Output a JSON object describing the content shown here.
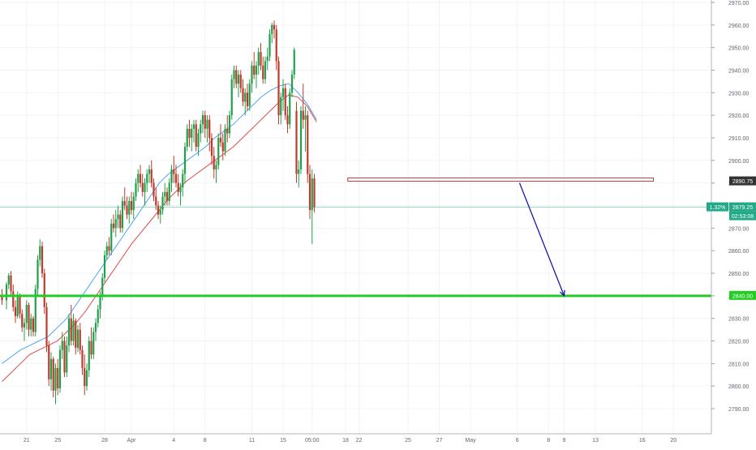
{
  "chart_data": {
    "type": "candlestick",
    "title": "",
    "xlabel": "",
    "ylabel": "",
    "ylim": [
      2785,
      2972
    ],
    "grid": true,
    "y_ticks": [
      2790,
      2800,
      2810,
      2820,
      2830,
      2840,
      2850,
      2860,
      2870,
      2880,
      2890,
      2900,
      2910,
      2920,
      2930,
      2940,
      2950,
      2960,
      2970
    ],
    "y_tick_labels": [
      "2790.00",
      "2800.00",
      "2810.00",
      "2820.00",
      "2830.00",
      "2840.00",
      "2850.00",
      "2860.00",
      "2870.00",
      "2880.00",
      "2890.00",
      "2900.00",
      "2910.00",
      "2920.00",
      "2930.00",
      "2940.00",
      "2950.00",
      "2960.00",
      "2970.00"
    ],
    "x_labels": [
      {
        "label": "21",
        "bar": 11
      },
      {
        "label": "25",
        "bar": 25
      },
      {
        "label": "28",
        "bar": 46
      },
      {
        "label": "Apr",
        "bar": 58
      },
      {
        "label": "4",
        "bar": 77
      },
      {
        "label": "8",
        "bar": 91
      },
      {
        "label": "11",
        "bar": 112
      },
      {
        "label": "15",
        "bar": 126
      },
      {
        "label": "05:00",
        "bar": 139
      },
      {
        "label": "18",
        "bar": 154
      },
      {
        "label": "22",
        "bar": 160
      },
      {
        "label": "25",
        "bar": 182
      },
      {
        "label": "27",
        "bar": 196
      },
      {
        "label": "May",
        "bar": 210
      },
      {
        "label": "6",
        "bar": 231
      },
      {
        "label": "8",
        "bar": 245
      },
      {
        "label": "9",
        "bar": 252
      },
      {
        "label": "13",
        "bar": 266
      },
      {
        "label": "16",
        "bar": 287
      },
      {
        "label": "20",
        "bar": 301
      }
    ],
    "candles": [
      [
        2840,
        2843,
        2836,
        2838
      ],
      [
        2838,
        2846,
        2834,
        2845
      ],
      [
        2845,
        2850,
        2843,
        2849
      ],
      [
        2849,
        2851,
        2840,
        2842
      ],
      [
        2842,
        2845,
        2833,
        2835
      ],
      [
        2835,
        2838,
        2828,
        2831
      ],
      [
        2831,
        2842,
        2830,
        2840
      ],
      [
        2840,
        2841,
        2830,
        2832
      ],
      [
        2832,
        2834,
        2824,
        2826
      ],
      [
        2826,
        2830,
        2820,
        2828
      ],
      [
        2828,
        2838,
        2825,
        2836
      ],
      [
        2836,
        2837,
        2822,
        2825
      ],
      [
        2825,
        2832,
        2822,
        2830
      ],
      [
        2830,
        2831,
        2822,
        2824
      ],
      [
        2824,
        2845,
        2822,
        2843
      ],
      [
        2843,
        2858,
        2840,
        2856
      ],
      [
        2856,
        2865,
        2853,
        2862
      ],
      [
        2862,
        2864,
        2848,
        2850
      ],
      [
        2850,
        2852,
        2832,
        2835
      ],
      [
        2835,
        2837,
        2815,
        2818
      ],
      [
        2818,
        2820,
        2800,
        2803
      ],
      [
        2803,
        2815,
        2798,
        2812
      ],
      [
        2812,
        2813,
        2795,
        2798
      ],
      [
        2798,
        2810,
        2792,
        2808
      ],
      [
        2808,
        2812,
        2796,
        2799
      ],
      [
        2799,
        2818,
        2797,
        2816
      ],
      [
        2816,
        2824,
        2812,
        2820
      ],
      [
        2820,
        2822,
        2804,
        2806
      ],
      [
        2806,
        2822,
        2804,
        2818
      ],
      [
        2818,
        2832,
        2815,
        2830
      ],
      [
        2830,
        2836,
        2818,
        2820
      ],
      [
        2820,
        2832,
        2818,
        2829
      ],
      [
        2829,
        2830,
        2814,
        2817
      ],
      [
        2817,
        2827,
        2815,
        2825
      ],
      [
        2825,
        2828,
        2814,
        2816
      ],
      [
        2816,
        2818,
        2805,
        2808
      ],
      [
        2808,
        2814,
        2796,
        2800
      ],
      [
        2800,
        2810,
        2798,
        2807
      ],
      [
        2807,
        2822,
        2804,
        2820
      ],
      [
        2820,
        2826,
        2812,
        2814
      ],
      [
        2814,
        2826,
        2812,
        2824
      ],
      [
        2824,
        2830,
        2820,
        2828
      ],
      [
        2828,
        2836,
        2826,
        2834
      ],
      [
        2834,
        2842,
        2830,
        2840
      ],
      [
        2840,
        2850,
        2838,
        2848
      ],
      [
        2848,
        2860,
        2846,
        2858
      ],
      [
        2858,
        2864,
        2856,
        2862
      ],
      [
        2862,
        2866,
        2858,
        2860
      ],
      [
        2860,
        2874,
        2858,
        2872
      ],
      [
        2872,
        2876,
        2868,
        2870
      ],
      [
        2870,
        2878,
        2866,
        2874
      ],
      [
        2874,
        2880,
        2870,
        2876
      ],
      [
        2876,
        2878,
        2868,
        2870
      ],
      [
        2870,
        2884,
        2868,
        2882
      ],
      [
        2882,
        2888,
        2878,
        2880
      ],
      [
        2880,
        2884,
        2874,
        2876
      ],
      [
        2876,
        2884,
        2872,
        2882
      ],
      [
        2882,
        2886,
        2876,
        2878
      ],
      [
        2878,
        2886,
        2874,
        2884
      ],
      [
        2884,
        2892,
        2882,
        2890
      ],
      [
        2890,
        2896,
        2886,
        2894
      ],
      [
        2894,
        2898,
        2888,
        2890
      ],
      [
        2890,
        2894,
        2884,
        2886
      ],
      [
        2886,
        2892,
        2880,
        2890
      ],
      [
        2890,
        2896,
        2886,
        2894
      ],
      [
        2894,
        2898,
        2890,
        2896
      ],
      [
        2896,
        2900,
        2888,
        2890
      ],
      [
        2890,
        2892,
        2882,
        2884
      ],
      [
        2884,
        2888,
        2878,
        2880
      ],
      [
        2880,
        2882,
        2874,
        2876
      ],
      [
        2876,
        2880,
        2872,
        2878
      ],
      [
        2878,
        2886,
        2876,
        2884
      ],
      [
        2884,
        2890,
        2880,
        2886
      ],
      [
        2886,
        2888,
        2880,
        2882
      ],
      [
        2882,
        2892,
        2880,
        2890
      ],
      [
        2890,
        2898,
        2886,
        2896
      ],
      [
        2896,
        2902,
        2890,
        2894
      ],
      [
        2894,
        2898,
        2888,
        2890
      ],
      [
        2890,
        2894,
        2884,
        2886
      ],
      [
        2886,
        2890,
        2880,
        2888
      ],
      [
        2888,
        2896,
        2884,
        2894
      ],
      [
        2894,
        2908,
        2890,
        2906
      ],
      [
        2906,
        2916,
        2904,
        2914
      ],
      [
        2914,
        2918,
        2906,
        2910
      ],
      [
        2910,
        2916,
        2904,
        2914
      ],
      [
        2914,
        2918,
        2908,
        2916
      ],
      [
        2916,
        2918,
        2904,
        2906
      ],
      [
        2906,
        2914,
        2902,
        2912
      ],
      [
        2912,
        2918,
        2908,
        2916
      ],
      [
        2916,
        2922,
        2912,
        2920
      ],
      [
        2920,
        2922,
        2910,
        2914
      ],
      [
        2914,
        2920,
        2908,
        2918
      ],
      [
        2918,
        2920,
        2904,
        2910
      ],
      [
        2910,
        2912,
        2898,
        2902
      ],
      [
        2902,
        2906,
        2892,
        2896
      ],
      [
        2896,
        2900,
        2890,
        2898
      ],
      [
        2898,
        2912,
        2896,
        2910
      ],
      [
        2910,
        2916,
        2906,
        2908
      ],
      [
        2908,
        2912,
        2900,
        2904
      ],
      [
        2904,
        2916,
        2902,
        2914
      ],
      [
        2914,
        2920,
        2908,
        2912
      ],
      [
        2912,
        2922,
        2910,
        2920
      ],
      [
        2920,
        2938,
        2918,
        2936
      ],
      [
        2936,
        2942,
        2932,
        2940
      ],
      [
        2940,
        2942,
        2932,
        2934
      ],
      [
        2934,
        2940,
        2928,
        2938
      ],
      [
        2938,
        2940,
        2930,
        2932
      ],
      [
        2932,
        2936,
        2924,
        2926
      ],
      [
        2926,
        2932,
        2920,
        2930
      ],
      [
        2930,
        2934,
        2922,
        2924
      ],
      [
        2924,
        2936,
        2922,
        2934
      ],
      [
        2934,
        2944,
        2930,
        2942
      ],
      [
        2942,
        2948,
        2936,
        2938
      ],
      [
        2938,
        2944,
        2932,
        2942
      ],
      [
        2942,
        2950,
        2938,
        2948
      ],
      [
        2948,
        2952,
        2940,
        2942
      ],
      [
        2942,
        2946,
        2934,
        2936
      ],
      [
        2936,
        2946,
        2934,
        2944
      ],
      [
        2944,
        2950,
        2940,
        2946
      ],
      [
        2946,
        2958,
        2944,
        2956
      ],
      [
        2956,
        2961,
        2952,
        2960
      ],
      [
        2960,
        2962,
        2954,
        2958
      ],
      [
        2958,
        2960,
        2940,
        2944
      ],
      [
        2944,
        2946,
        2916,
        2920
      ],
      [
        2920,
        2930,
        2916,
        2928
      ],
      [
        2928,
        2936,
        2922,
        2932
      ],
      [
        2932,
        2934,
        2918,
        2920
      ],
      [
        2920,
        2924,
        2912,
        2916
      ],
      [
        2916,
        2932,
        2914,
        2930
      ],
      [
        2930,
        2940,
        2928,
        2938
      ],
      [
        2938,
        2950,
        2936,
        2949
      ],
      [
        2922,
        2926,
        2890,
        2894
      ],
      [
        2894,
        2900,
        2888,
        2896
      ],
      [
        2896,
        2924,
        2894,
        2922
      ],
      [
        2922,
        2934,
        2914,
        2918
      ],
      [
        2918,
        2924,
        2904,
        2920
      ],
      [
        2920,
        2922,
        2890,
        2894
      ],
      [
        2894,
        2898,
        2874,
        2878
      ],
      [
        2878,
        2896,
        2863,
        2892
      ],
      [
        2892,
        2894,
        2877,
        2879.25
      ]
    ],
    "bar_positions": [
      0,
      2,
      3,
      4,
      5,
      6,
      7,
      8,
      9,
      10,
      11,
      12,
      13,
      14,
      15,
      16,
      17,
      18,
      19,
      20,
      21,
      22,
      23,
      24,
      25,
      26,
      27,
      28,
      29,
      30,
      31,
      32,
      33,
      34,
      35,
      36,
      37,
      38,
      39,
      40,
      41,
      42,
      43,
      44,
      45,
      46,
      47,
      48,
      49,
      50,
      51,
      52,
      53,
      54,
      55,
      56,
      57,
      58,
      59,
      60,
      61,
      62,
      63,
      64,
      65,
      66,
      67,
      68,
      69,
      70,
      71,
      72,
      73,
      74,
      75,
      76,
      77,
      78,
      79,
      80,
      81,
      82,
      83,
      84,
      85,
      86,
      87,
      88,
      89,
      90,
      91,
      92,
      93,
      94,
      95,
      96,
      97,
      98,
      99,
      100,
      101,
      102,
      103,
      104,
      105,
      106,
      107,
      108,
      109,
      110,
      111,
      112,
      113,
      114,
      115,
      116,
      117,
      118,
      119,
      120,
      121,
      122,
      123,
      124,
      125,
      126,
      127,
      128,
      129,
      130,
      131,
      132,
      133,
      134,
      135,
      136,
      137,
      138,
      139,
      140,
      141
    ],
    "moving_averages": [
      {
        "color": "#4ba3ff",
        "values": [
          2810,
          2813,
          2816,
          2818,
          2820,
          2822,
          2826,
          2830,
          2836,
          2842,
          2848,
          2854,
          2860,
          2866,
          2872,
          2878,
          2884,
          2890,
          2894,
          2897,
          2900,
          2903,
          2906,
          2910,
          2913,
          2916,
          2920,
          2924,
          2928,
          2931,
          2933,
          2934,
          2930,
          2925,
          2918
        ]
      },
      {
        "color": "#e04a4a",
        "values": [
          2802,
          2806,
          2810,
          2814,
          2816,
          2818,
          2820,
          2824,
          2828,
          2833,
          2839,
          2845,
          2851,
          2857,
          2863,
          2868,
          2873,
          2878,
          2883,
          2887,
          2891,
          2894,
          2897,
          2900,
          2903,
          2906,
          2910,
          2914,
          2918,
          2922,
          2926,
          2929,
          2928,
          2924,
          2917
        ]
      }
    ],
    "annotations": [
      {
        "type": "horizontal-line",
        "value": 2840,
        "color": "#22cc22"
      },
      {
        "type": "resistance-zone",
        "value": 2891.5,
        "color": "#c04040"
      },
      {
        "type": "current-price-line",
        "value": 2879.25,
        "color": "#22aa88"
      },
      {
        "type": "arrow",
        "from_bar": 232,
        "from_value": 2890,
        "to_bar": 252,
        "to_value": 2840,
        "color": "#1a1aaa"
      }
    ],
    "price_labels": [
      {
        "value": 2890.75,
        "text": "2890.75",
        "color": "#333333"
      },
      {
        "value": 2879.25,
        "text": "2879.25",
        "change": "1.32%",
        "countdown": "02:53:08",
        "color": "#22aa88"
      },
      {
        "value": 2840,
        "text": "2840.00",
        "color": "#22cc22"
      }
    ],
    "colors": {
      "up": "#21a04b",
      "down": "#c0392b"
    }
  }
}
